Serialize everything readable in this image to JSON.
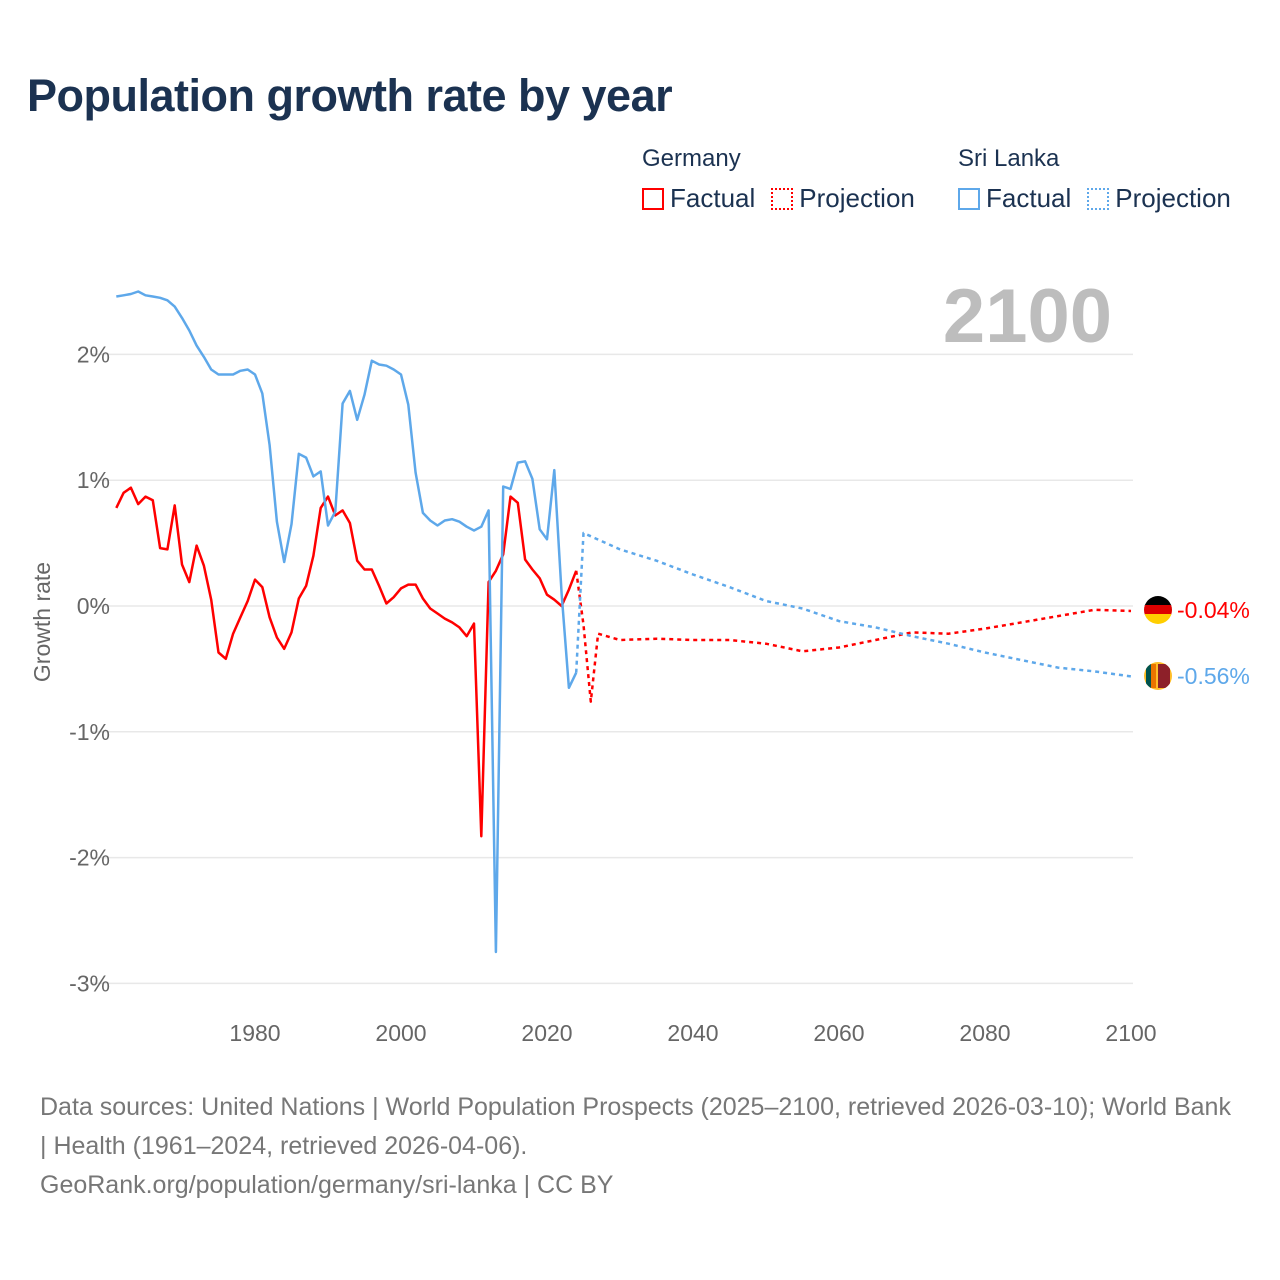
{
  "title": "Population growth rate by year",
  "legend": {
    "groups": [
      {
        "country": "Germany",
        "factual": "Factual",
        "projection": "Projection",
        "color": "#ff0000"
      },
      {
        "country": "Sri Lanka",
        "factual": "Factual",
        "projection": "Projection",
        "color": "#5ea8ea"
      }
    ]
  },
  "year_label": "2100",
  "end_labels": {
    "germany": "-0.04%",
    "sri_lanka": "-0.56%"
  },
  "footer": {
    "line1": "Data sources: United Nations | World Population Prospects (2025–2100, retrieved 2026-03-10); World Bank | Health (1961–2024, retrieved 2026-04-06).",
    "line2": "GeoRank.org/population/germany/sri-lanka | CC BY"
  },
  "chart_data": {
    "type": "line",
    "title": "Population growth rate by year",
    "xlabel": "",
    "ylabel": "Growth rate",
    "xlim": [
      1961,
      2100
    ],
    "ylim": [
      -3.2,
      2.7
    ],
    "x_ticks": [
      "1980",
      "2000",
      "2020",
      "2040",
      "2060",
      "2080",
      "2100"
    ],
    "x_tick_values": [
      1980,
      2000,
      2020,
      2040,
      2060,
      2080,
      2100
    ],
    "y_ticks": [
      "2%",
      "1%",
      "0%",
      "-1%",
      "-2%",
      "-3%"
    ],
    "y_tick_values": [
      2,
      1,
      0,
      -1,
      -2,
      -3
    ],
    "grid": true,
    "legend_position": "top-right",
    "series": [
      {
        "name": "Germany Factual",
        "color": "#ff0000",
        "style": "solid",
        "start_year": 1961,
        "values": [
          0.78,
          0.9,
          0.94,
          0.81,
          0.87,
          0.84,
          0.46,
          0.45,
          0.8,
          0.33,
          0.19,
          0.48,
          0.32,
          0.05,
          -0.37,
          -0.42,
          -0.22,
          -0.09,
          0.04,
          0.21,
          0.15,
          -0.09,
          -0.25,
          -0.34,
          -0.21,
          0.06,
          0.16,
          0.4,
          0.78,
          0.87,
          0.72,
          0.76,
          0.66,
          0.36,
          0.29,
          0.29,
          0.16,
          0.02,
          0.07,
          0.14,
          0.17,
          0.17,
          0.06,
          -0.02,
          -0.06,
          -0.1,
          -0.13,
          -0.17,
          -0.24,
          -0.14,
          -1.83,
          0.19,
          0.28,
          0.41,
          0.87,
          0.82,
          0.37,
          0.29,
          0.22,
          0.09,
          0.05,
          0.0,
          0.13,
          0.28
        ]
      },
      {
        "name": "Germany Projection",
        "color": "#ff0000",
        "style": "dotted",
        "x": [
          2024,
          2025,
          2026,
          2027,
          2030,
          2035,
          2040,
          2045,
          2050,
          2055,
          2060,
          2065,
          2070,
          2075,
          2080,
          2085,
          2090,
          2095,
          2100
        ],
        "values": [
          0.28,
          -0.15,
          -0.76,
          -0.22,
          -0.27,
          -0.26,
          -0.27,
          -0.27,
          -0.3,
          -0.36,
          -0.33,
          -0.27,
          -0.21,
          -0.22,
          -0.18,
          -0.13,
          -0.08,
          -0.03,
          -0.04
        ]
      },
      {
        "name": "Sri Lanka Factual",
        "color": "#5ea8ea",
        "style": "solid",
        "start_year": 1961,
        "values": [
          2.46,
          2.47,
          2.48,
          2.5,
          2.47,
          2.46,
          2.45,
          2.43,
          2.38,
          2.29,
          2.19,
          2.07,
          1.98,
          1.88,
          1.84,
          1.84,
          1.84,
          1.87,
          1.88,
          1.84,
          1.69,
          1.28,
          0.67,
          0.35,
          0.65,
          1.21,
          1.18,
          1.03,
          1.07,
          0.64,
          0.75,
          1.61,
          1.71,
          1.48,
          1.68,
          1.95,
          1.92,
          1.91,
          1.88,
          1.84,
          1.6,
          1.06,
          0.74,
          0.68,
          0.64,
          0.68,
          0.69,
          0.67,
          0.63,
          0.6,
          0.63,
          0.76,
          -2.75,
          0.95,
          0.93,
          1.14,
          1.15,
          1.01,
          0.61,
          0.53,
          1.08,
          0.1,
          -0.65,
          -0.53
        ]
      },
      {
        "name": "Sri Lanka Projection",
        "color": "#5ea8ea",
        "style": "dotted",
        "x": [
          2024,
          2025,
          2030,
          2035,
          2040,
          2045,
          2050,
          2055,
          2060,
          2065,
          2070,
          2075,
          2080,
          2085,
          2090,
          2095,
          2100
        ],
        "values": [
          -0.53,
          0.58,
          0.45,
          0.36,
          0.25,
          0.15,
          0.04,
          -0.02,
          -0.12,
          -0.17,
          -0.24,
          -0.3,
          -0.37,
          -0.43,
          -0.49,
          -0.52,
          -0.56
        ]
      }
    ]
  }
}
